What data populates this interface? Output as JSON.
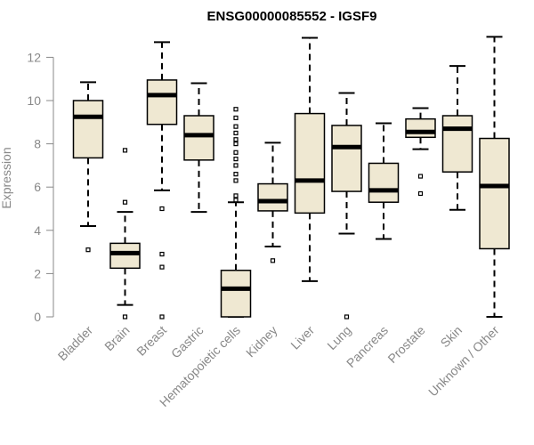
{
  "chart_data": {
    "type": "boxplot",
    "title": "ENSG00000085552 - IGSF9",
    "ylabel": "Expression",
    "ylim": [
      0,
      13
    ],
    "yticks": [
      0,
      2,
      4,
      6,
      8,
      10,
      12
    ],
    "box_fill": "#efe8d2",
    "categories": [
      "Bladder",
      "Brain",
      "Breast",
      "Gastric",
      "Hematopoietic cells",
      "Kidney",
      "Liver",
      "Lung",
      "Pancreas",
      "Prostate",
      "Skin",
      "Unknown / Other"
    ],
    "boxes": [
      {
        "name": "Bladder",
        "lower_whisker": 4.2,
        "q1": 7.35,
        "median": 9.25,
        "q3": 10.0,
        "upper_whisker": 10.85,
        "outliers": [
          3.1
        ]
      },
      {
        "name": "Brain",
        "lower_whisker": 0.55,
        "q1": 2.25,
        "median": 2.95,
        "q3": 3.4,
        "upper_whisker": 4.85,
        "outliers": [
          5.3,
          7.7,
          0.0
        ]
      },
      {
        "name": "Breast",
        "lower_whisker": 5.85,
        "q1": 8.9,
        "median": 10.25,
        "q3": 10.95,
        "upper_whisker": 12.7,
        "outliers": [
          5.0,
          2.9,
          2.3,
          0.0
        ]
      },
      {
        "name": "Gastric",
        "lower_whisker": 4.85,
        "q1": 7.25,
        "median": 8.4,
        "q3": 9.3,
        "upper_whisker": 10.8,
        "outliers": []
      },
      {
        "name": "Hematopoietic cells",
        "lower_whisker": 0.0,
        "q1": 0.0,
        "median": 1.3,
        "q3": 2.15,
        "upper_whisker": 5.3,
        "outliers": [
          9.6,
          9.2,
          8.8,
          8.5,
          8.2,
          8.0,
          7.6,
          7.3,
          7.0,
          6.6,
          6.3,
          5.6,
          5.4
        ]
      },
      {
        "name": "Kidney",
        "lower_whisker": 3.25,
        "q1": 4.9,
        "median": 5.35,
        "q3": 6.15,
        "upper_whisker": 8.05,
        "outliers": [
          2.6
        ]
      },
      {
        "name": "Liver",
        "lower_whisker": 1.65,
        "q1": 4.8,
        "median": 6.3,
        "q3": 9.4,
        "upper_whisker": 12.9,
        "outliers": []
      },
      {
        "name": "Lung",
        "lower_whisker": 3.85,
        "q1": 5.8,
        "median": 7.85,
        "q3": 8.85,
        "upper_whisker": 10.35,
        "outliers": [
          0.0
        ]
      },
      {
        "name": "Pancreas",
        "lower_whisker": 3.6,
        "q1": 5.3,
        "median": 5.85,
        "q3": 7.1,
        "upper_whisker": 8.95,
        "outliers": []
      },
      {
        "name": "Prostate",
        "lower_whisker": 7.75,
        "q1": 8.3,
        "median": 8.55,
        "q3": 9.15,
        "upper_whisker": 9.65,
        "outliers": [
          6.5,
          5.7
        ]
      },
      {
        "name": "Skin",
        "lower_whisker": 4.95,
        "q1": 6.7,
        "median": 8.7,
        "q3": 9.3,
        "upper_whisker": 11.6,
        "outliers": []
      },
      {
        "name": "Unknown / Other",
        "lower_whisker": 0.0,
        "q1": 3.15,
        "median": 6.05,
        "q3": 8.25,
        "upper_whisker": 12.95,
        "outliers": []
      }
    ]
  }
}
